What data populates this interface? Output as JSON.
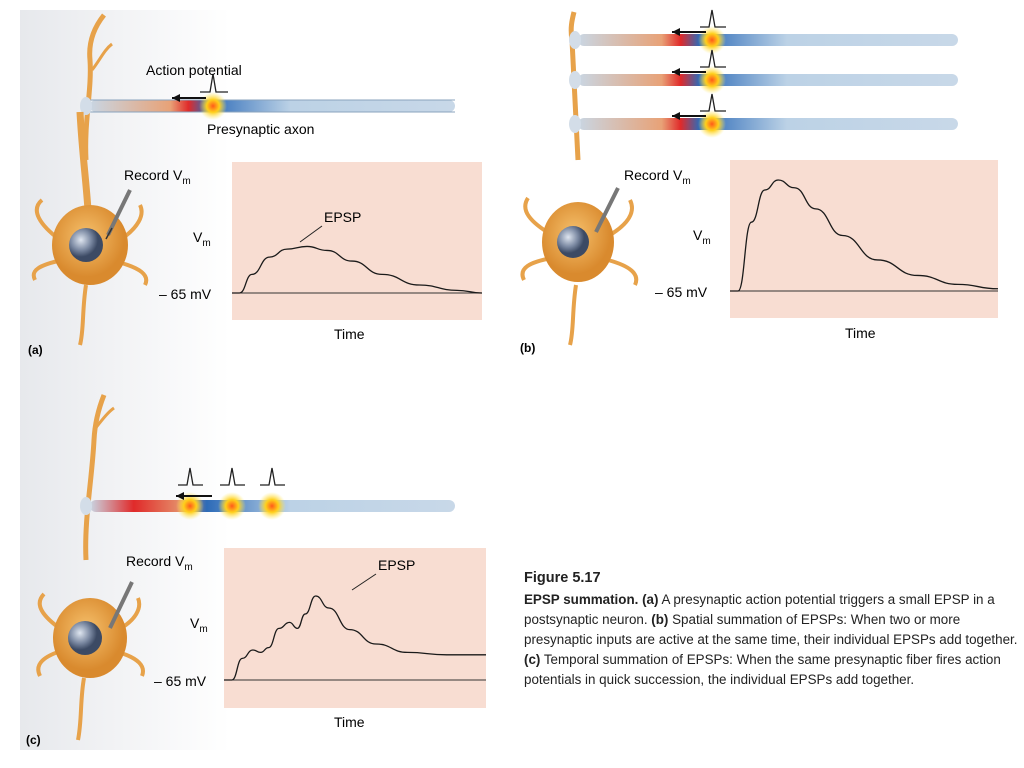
{
  "panels": {
    "a": {
      "label": "(a)",
      "action_potential_label": "Action potential",
      "axon_label": "Presynaptic axon",
      "record_label": "Record V",
      "record_sub": "m",
      "y_label": "V",
      "y_sub": "m",
      "baseline_label": "– 65 mV",
      "x_label": "Time",
      "epsp_label": "EPSP"
    },
    "b": {
      "label": "(b)",
      "record_label": "Record V",
      "record_sub": "m",
      "y_label": "V",
      "y_sub": "m",
      "baseline_label": "– 65 mV",
      "x_label": "Time"
    },
    "c": {
      "label": "(c)",
      "record_label": "Record V",
      "record_sub": "m",
      "y_label": "V",
      "y_sub": "m",
      "baseline_label": "– 65 mV",
      "x_label": "Time",
      "epsp_label": "EPSP"
    }
  },
  "caption": {
    "figure": "Figure 5.17",
    "title": "EPSP summation.",
    "part_a": "(a)",
    "text_a": " A presynaptic action potential triggers a small EPSP in a postsynaptic neuron. ",
    "part_b": "(b)",
    "text_b": " Spatial summation of EPSPs: When two or more presynaptic inputs are active at the same time, their individual EPSPs add together. ",
    "part_c": "(c)",
    "text_c": " Temporal summation of EPSPs: When the same presynaptic fiber fires action potentials in quick succession, the individual EPSPs add together."
  },
  "colors": {
    "panel_bg": "#f8ddd2",
    "trace": "#1a1a1a",
    "neuron": "#e7a24a",
    "axon": "#bcd2e6",
    "spike_glow": "#ffd21a"
  },
  "chart_data": [
    {
      "type": "line",
      "panel": "a",
      "xlabel": "Time",
      "ylabel": "Vm",
      "baseline": "-65 mV",
      "x": [
        0,
        0.03,
        0.08,
        0.15,
        0.22,
        0.3,
        0.38,
        0.48,
        0.6,
        0.75,
        0.9,
        1.0
      ],
      "y": [
        0,
        0,
        0.14,
        0.27,
        0.33,
        0.35,
        0.32,
        0.24,
        0.14,
        0.06,
        0.02,
        0.0
      ]
    },
    {
      "type": "line",
      "panel": "b",
      "xlabel": "Time",
      "ylabel": "Vm",
      "baseline": "-65 mV",
      "x": [
        0,
        0.03,
        0.08,
        0.13,
        0.18,
        0.24,
        0.32,
        0.42,
        0.55,
        0.7,
        0.85,
        1.0
      ],
      "y": [
        0,
        0,
        0.62,
        0.91,
        1.0,
        0.93,
        0.74,
        0.5,
        0.28,
        0.14,
        0.06,
        0.02
      ]
    },
    {
      "type": "line",
      "panel": "c",
      "xlabel": "Time",
      "ylabel": "Vm",
      "baseline": "-65 mV",
      "x": [
        0,
        0.03,
        0.07,
        0.11,
        0.14,
        0.17,
        0.21,
        0.25,
        0.28,
        0.31,
        0.35,
        0.4,
        0.48,
        0.58,
        0.7,
        0.85,
        1.0
      ],
      "y": [
        0,
        0,
        0.18,
        0.25,
        0.23,
        0.27,
        0.43,
        0.48,
        0.43,
        0.55,
        0.7,
        0.6,
        0.42,
        0.3,
        0.23,
        0.21,
        0.21
      ]
    }
  ]
}
